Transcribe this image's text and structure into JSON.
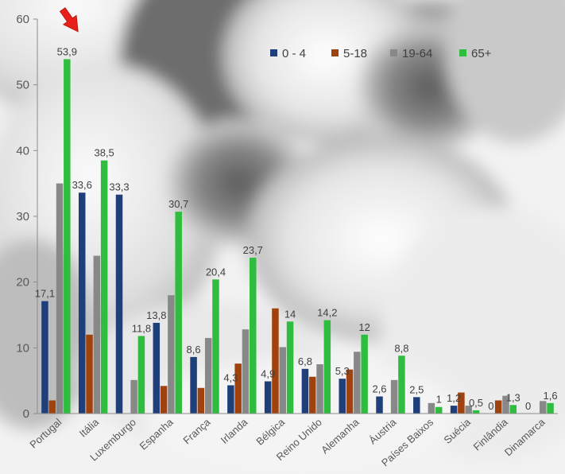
{
  "chart_data": {
    "type": "bar",
    "title": "",
    "xlabel": "",
    "ylabel": "",
    "ylim": [
      0,
      60
    ],
    "yticks": [
      0,
      10,
      20,
      30,
      40,
      50,
      60
    ],
    "grid": false,
    "legend_position": "top-right",
    "categories": [
      "Portugal",
      "Itália",
      "Luxemburgo",
      "Espanha",
      "França",
      "Irlanda",
      "Bélgica",
      "Reino Unido",
      "Alemanha",
      "Áustria",
      "Países Baixos",
      "Suécia",
      "Finlândia",
      "Dinamarca"
    ],
    "series": [
      {
        "name": "0 - 4",
        "color": "#1f3f7a",
        "values": [
          17.1,
          33.6,
          33.3,
          13.8,
          8.6,
          4.3,
          4.9,
          6.8,
          5.3,
          2.6,
          2.5,
          1.2,
          0,
          0
        ]
      },
      {
        "name": "5-18",
        "color": "#a0420e",
        "values": [
          2.0,
          12.0,
          0,
          4.2,
          3.9,
          7.6,
          16.0,
          5.6,
          6.7,
          0,
          0,
          3.2,
          2.0,
          0
        ]
      },
      {
        "name": "19-64",
        "color": "#888888",
        "values": [
          35.0,
          24.0,
          5.1,
          18.0,
          11.5,
          12.8,
          10.1,
          7.5,
          9.4,
          5.1,
          1.6,
          1.2,
          2.7,
          1.9
        ]
      },
      {
        "name": "65+",
        "color": "#2ebd3e",
        "values": [
          53.9,
          38.5,
          11.8,
          30.7,
          20.4,
          23.7,
          14.0,
          14.2,
          12.0,
          8.8,
          1.0,
          0.5,
          1.3,
          1.6
        ]
      }
    ],
    "data_labels": [
      {
        "category": 0,
        "series": 0,
        "text": "17,1"
      },
      {
        "category": 0,
        "series": 3,
        "text": "53,9"
      },
      {
        "category": 1,
        "series": 0,
        "text": "33,6"
      },
      {
        "category": 1,
        "series": 3,
        "text": "38,5"
      },
      {
        "category": 2,
        "series": 0,
        "text": "33,3"
      },
      {
        "category": 2,
        "series": 3,
        "text": "11,8"
      },
      {
        "category": 3,
        "series": 0,
        "text": "13,8"
      },
      {
        "category": 3,
        "series": 3,
        "text": "30,7"
      },
      {
        "category": 4,
        "series": 0,
        "text": "8,6"
      },
      {
        "category": 4,
        "series": 3,
        "text": "20,4"
      },
      {
        "category": 5,
        "series": 0,
        "text": "4,3"
      },
      {
        "category": 5,
        "series": 3,
        "text": "23,7"
      },
      {
        "category": 6,
        "series": 0,
        "text": "4,9"
      },
      {
        "category": 6,
        "series": 3,
        "text": "14"
      },
      {
        "category": 7,
        "series": 0,
        "text": "6,8"
      },
      {
        "category": 7,
        "series": 3,
        "text": "14,2"
      },
      {
        "category": 8,
        "series": 0,
        "text": "5,3"
      },
      {
        "category": 8,
        "series": 3,
        "text": "12"
      },
      {
        "category": 9,
        "series": 0,
        "text": "2,6"
      },
      {
        "category": 9,
        "series": 3,
        "text": "8,8"
      },
      {
        "category": 10,
        "series": 0,
        "text": "2,5"
      },
      {
        "category": 10,
        "series": 3,
        "text": "1"
      },
      {
        "category": 11,
        "series": 0,
        "text": "1,2"
      },
      {
        "category": 11,
        "series": 3,
        "text": "0,5"
      },
      {
        "category": 12,
        "series": 0,
        "text": "0"
      },
      {
        "category": 12,
        "series": 3,
        "text": "1,3"
      },
      {
        "category": 13,
        "series": 0,
        "text": "0"
      },
      {
        "category": 13,
        "series": 3,
        "text": "1,6"
      }
    ],
    "highlight": {
      "category": 0,
      "marker": "red-arrow-icon",
      "color": "#e8201a"
    }
  }
}
